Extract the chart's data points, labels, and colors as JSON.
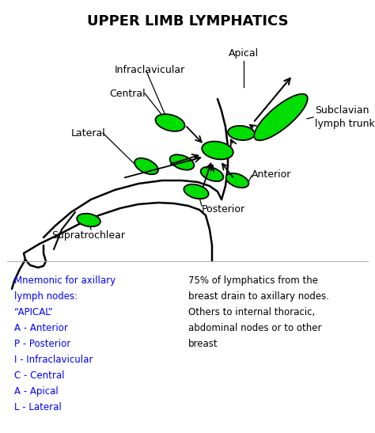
{
  "title": "UPPER LIMB LYMPHATICS",
  "bg_color": "#ffffff",
  "node_color": "#00dd00",
  "node_edge_color": "#000000",
  "arrow_color": "#000000",
  "line_color": "#000000",
  "blue_color": "#0000ff",
  "black_text_color": "#000000",
  "figsize": [
    4.74,
    5.47
  ],
  "dpi": 100,
  "mnemonic_lines": [
    "Mnemonic for axillary",
    "lymph nodes:",
    "“APICAL”",
    "A - Anterior",
    "P - Posterior",
    "I - Infraclavicular",
    "C - Central",
    "A - Apical",
    "L - Lateral"
  ],
  "right_text": "75% of lymphatics from the\nbreast drain to axillary nodes.\nOthers to internal thoracic,\nabdominal nodes or to other\nbreast"
}
